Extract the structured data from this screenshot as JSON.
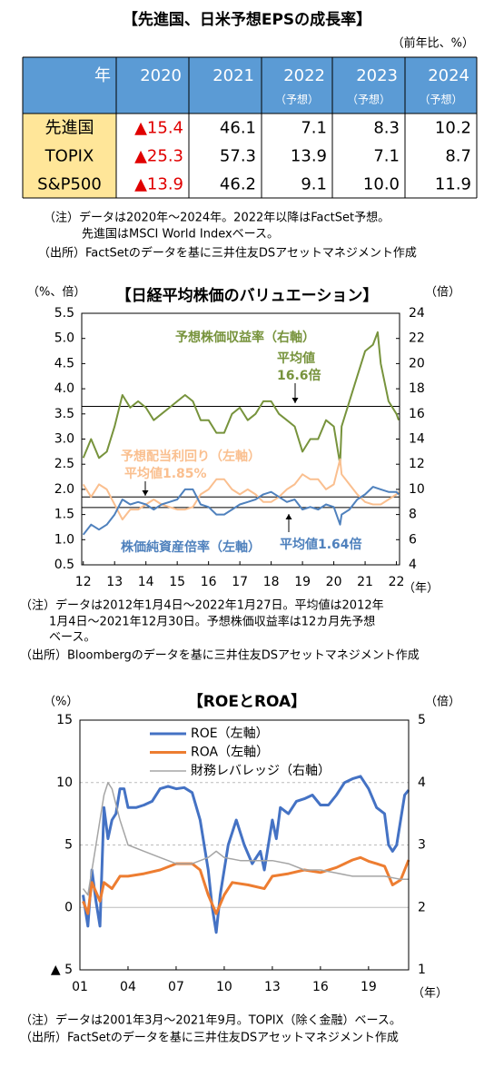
{
  "title": "【先進国、日米予想EPSの成長率】",
  "unit": "（前年比、%）",
  "table": {
    "header": [
      {
        "year": "年"
      },
      {
        "year": "2020"
      },
      {
        "year": "2021"
      },
      {
        "year": "2022",
        "note": "（予想）"
      },
      {
        "year": "2023",
        "note": "（予想）"
      },
      {
        "year": "2024",
        "note": "（予想）"
      }
    ],
    "rows": [
      [
        "先進国",
        "▲15.4",
        "46.1",
        "7.1",
        "8.3",
        "10.2"
      ],
      [
        "TOPIX",
        "▲25.3",
        "57.3",
        "13.9",
        "7.1",
        "8.7"
      ],
      [
        "S&P500",
        "▲13.9",
        "46.2",
        "9.1",
        "10.0",
        "11.9"
      ]
    ]
  },
  "notes1": [
    "（注）データは2020年～2024年。2022年以降はFactSet予想。",
    "先進国はMSCI World Indexベース。",
    "（出所）FactSetのデータを基に三井住友DSアセットマネジメント作成"
  ],
  "chart_data": [
    {
      "type": "line",
      "title": "【日経平均株価のバリュエーション】",
      "ylabel": "（%、倍）",
      "y2label": "（倍）",
      "xlabel": "（年）",
      "xlim": [
        11.95,
        22.1
      ],
      "xticks": [
        12,
        13,
        14,
        15,
        16,
        17,
        18,
        19,
        20,
        21,
        22
      ],
      "ylim": [
        0.5,
        5.5
      ],
      "yticks": [
        0.5,
        {
          "value": 1,
          "label": "1.0"
        },
        1.5,
        {
          "value": 2,
          "label": "2.0"
        },
        2.5,
        {
          "value": 3,
          "label": "3.0"
        },
        3.5,
        {
          "value": 4,
          "label": "4.0"
        },
        4.5,
        {
          "value": 5,
          "label": "5.0"
        },
        5.5
      ],
      "y2lim": [
        4,
        24
      ],
      "y2ticks": [
        4,
        6,
        8,
        10,
        12,
        14,
        16,
        18,
        20,
        22,
        24
      ],
      "grid": false,
      "reference_lines": [
        {
          "value": 16.6,
          "axis": "y2"
        },
        {
          "value": 1.85
        },
        {
          "value": 1.64
        }
      ],
      "annotations": [
        "予想株価収益率（右軸）",
        "平均値",
        "16.6倍",
        "予想配当利回り（左軸）",
        "平均値1.85%",
        "株価純資産倍率（左軸）",
        "平均値1.64倍"
      ],
      "series": [
        {
          "name": "予想株価収益率（右軸）",
          "color": "#77933c",
          "axis": "y2",
          "x": [
            12,
            12.25,
            12.5,
            12.75,
            13,
            13.25,
            13.5,
            13.75,
            14,
            14.25,
            14.5,
            14.75,
            15,
            15.25,
            15.5,
            15.75,
            16,
            16.25,
            16.5,
            16.75,
            17,
            17.25,
            17.5,
            17.75,
            18,
            18.25,
            18.5,
            18.75,
            19,
            19.25,
            19.5,
            19.75,
            20,
            20.2,
            20.25,
            20.5,
            20.75,
            21,
            21.25,
            21.4,
            21.5,
            21.75,
            22,
            22.07
          ],
          "values": [
            12.5,
            14,
            12.5,
            13,
            15,
            17.5,
            16.5,
            17,
            16.5,
            15.5,
            16,
            16.5,
            17,
            17.5,
            17,
            15.5,
            15.5,
            14.5,
            14.5,
            16,
            16.5,
            15.5,
            16,
            17,
            17,
            16,
            15.5,
            15,
            13,
            14,
            14,
            15.5,
            15,
            12,
            15,
            17,
            19,
            21,
            21.5,
            22.5,
            20,
            17,
            16,
            15.5
          ]
        },
        {
          "name": "予想配当利回り（左軸）",
          "color": "#fabf8f",
          "x": [
            12,
            12.25,
            12.5,
            12.75,
            13,
            13.25,
            13.5,
            13.75,
            14,
            14.25,
            14.5,
            14.75,
            15,
            15.25,
            15.5,
            15.75,
            16,
            16.25,
            16.5,
            16.75,
            17,
            17.25,
            17.5,
            17.75,
            18,
            18.25,
            18.5,
            18.75,
            19,
            19.25,
            19.5,
            19.75,
            20,
            20.2,
            20.25,
            20.5,
            20.75,
            21,
            21.25,
            21.5,
            21.75,
            22,
            22.07
          ],
          "values": [
            2.1,
            1.85,
            2.1,
            2,
            1.7,
            1.4,
            1.6,
            1.6,
            1.7,
            1.8,
            1.7,
            1.65,
            1.6,
            1.6,
            1.65,
            1.9,
            2,
            2.2,
            2.2,
            2,
            1.9,
            2,
            1.9,
            1.75,
            1.75,
            1.85,
            2,
            2.1,
            2.3,
            2.2,
            2.2,
            2,
            2.1,
            2.6,
            2.3,
            2.1,
            1.9,
            1.75,
            1.7,
            1.7,
            1.8,
            1.9,
            1.95
          ]
        },
        {
          "name": "株価純資産倍率（左軸）",
          "color": "#4f81bd",
          "x": [
            12,
            12.25,
            12.5,
            12.75,
            13,
            13.25,
            13.5,
            13.75,
            14,
            14.25,
            14.5,
            14.75,
            15,
            15.25,
            15.5,
            15.75,
            16,
            16.25,
            16.5,
            16.75,
            17,
            17.25,
            17.5,
            17.75,
            18,
            18.25,
            18.5,
            18.75,
            19,
            19.25,
            19.5,
            19.75,
            20,
            20.2,
            20.25,
            20.5,
            20.75,
            21,
            21.25,
            21.5,
            21.75,
            22,
            22.07
          ],
          "values": [
            1.1,
            1.3,
            1.2,
            1.3,
            1.5,
            1.8,
            1.7,
            1.75,
            1.7,
            1.6,
            1.7,
            1.75,
            1.8,
            2,
            2,
            1.7,
            1.65,
            1.5,
            1.5,
            1.6,
            1.7,
            1.75,
            1.8,
            1.9,
            1.95,
            1.85,
            1.75,
            1.8,
            1.6,
            1.65,
            1.6,
            1.7,
            1.65,
            1.3,
            1.5,
            1.6,
            1.8,
            1.9,
            2.05,
            2,
            1.95,
            1.95,
            1.9
          ]
        }
      ]
    },
    {
      "type": "line",
      "title": "【ROEとROA】",
      "ylabel": "（%）",
      "y2label": "（倍）",
      "xlabel": "（年）",
      "xlim": [
        1,
        21.5
      ],
      "xticks": [
        {
          "value": 1,
          "label": "01"
        },
        {
          "value": 4,
          "label": "04"
        },
        {
          "value": 7,
          "label": "07"
        },
        10,
        13,
        16,
        19
      ],
      "ylim": [
        -5,
        15
      ],
      "yticks": [
        {
          "value": -5,
          "label": "▲ 5"
        },
        0,
        5,
        10,
        15
      ],
      "y2lim": [
        1,
        5
      ],
      "y2ticks": [
        1,
        2,
        3,
        4,
        5
      ],
      "grid": true,
      "series": [
        {
          "name": "ROE（左軸）",
          "color": "#4472c4",
          "x": [
            1.2,
            1.5,
            1.75,
            2,
            2.25,
            2.5,
            2.75,
            3,
            3.25,
            3.5,
            3.75,
            4,
            4.5,
            5,
            5.5,
            6,
            6.5,
            7,
            7.5,
            8,
            8.5,
            9,
            9.25,
            9.5,
            9.75,
            10.25,
            10.75,
            11.25,
            11.75,
            12.25,
            12.5,
            13,
            13.25,
            13.5,
            14,
            14.5,
            15,
            15.5,
            16,
            16.5,
            17,
            17.5,
            18,
            18.5,
            19,
            19.5,
            20,
            20.25,
            20.5,
            20.75,
            21,
            21.25,
            21.5
          ],
          "values": [
            1,
            -1.5,
            3,
            0.5,
            -1.5,
            8,
            5.5,
            7,
            7.5,
            9.5,
            9.5,
            8,
            8,
            8.2,
            8.5,
            9.5,
            9.7,
            9.5,
            9.6,
            9.2,
            7,
            3,
            0,
            -2,
            1,
            5,
            7,
            5,
            3.5,
            4.5,
            3,
            7,
            5.5,
            8,
            7.5,
            8.5,
            8.7,
            9,
            8.2,
            8.2,
            9,
            10,
            10.3,
            10.5,
            9.5,
            8,
            7.5,
            5,
            4.5,
            5,
            7,
            9,
            9.4
          ]
        },
        {
          "name": "ROA（左軸）",
          "color": "#ed7d31",
          "x": [
            1.2,
            1.5,
            1.75,
            2.25,
            2.5,
            3,
            3.5,
            4,
            5,
            6,
            7,
            8,
            8.5,
            9,
            9.5,
            10,
            10.5,
            11.5,
            12.5,
            13,
            14,
            15,
            16,
            17,
            18,
            18.5,
            19,
            19.5,
            20,
            20.5,
            21,
            21.5
          ],
          "values": [
            0.5,
            -0.5,
            2,
            0.5,
            2,
            1.5,
            2.5,
            2.5,
            2.7,
            3,
            3.5,
            3.5,
            3,
            1,
            -0.5,
            1,
            2,
            1.8,
            1.5,
            2.5,
            2.7,
            3,
            2.8,
            3.2,
            3.8,
            4,
            3.7,
            3.5,
            3.3,
            1.8,
            2.2,
            3.8
          ]
        },
        {
          "name": "財務レバレッジ（右軸）",
          "color": "#a5a5a5",
          "axis": "y2",
          "x": [
            1.2,
            1.5,
            2,
            2.5,
            2.75,
            3,
            3.5,
            4,
            5,
            6,
            7,
            8,
            9,
            9.5,
            10,
            11,
            12,
            13,
            14,
            15,
            16,
            17,
            18,
            19,
            20,
            21,
            21.5
          ],
          "values": [
            2.3,
            2.2,
            3,
            3.8,
            4,
            3.9,
            3.4,
            3,
            2.9,
            2.8,
            2.7,
            2.7,
            2.8,
            2.9,
            2.8,
            2.75,
            2.75,
            2.75,
            2.7,
            2.6,
            2.6,
            2.55,
            2.5,
            2.5,
            2.5,
            2.45,
            2.45
          ]
        }
      ]
    }
  ],
  "notes2": [
    "（注）データは2012年1月4日～2022年1月27日。平均値は2012年",
    "1月4日～2021年12月30日。予想株価収益率は12カ月先予想",
    "ベース。",
    "（出所）Bloombergのデータを基に三井住友DSアセットマネジメント作成"
  ],
  "notes3": [
    "（注）データは2001年3月～2021年9月。TOPIX（除く金融）ベース。",
    "（出所）FactSetのデータを基に三井住友DSアセットマネジメント作成"
  ]
}
